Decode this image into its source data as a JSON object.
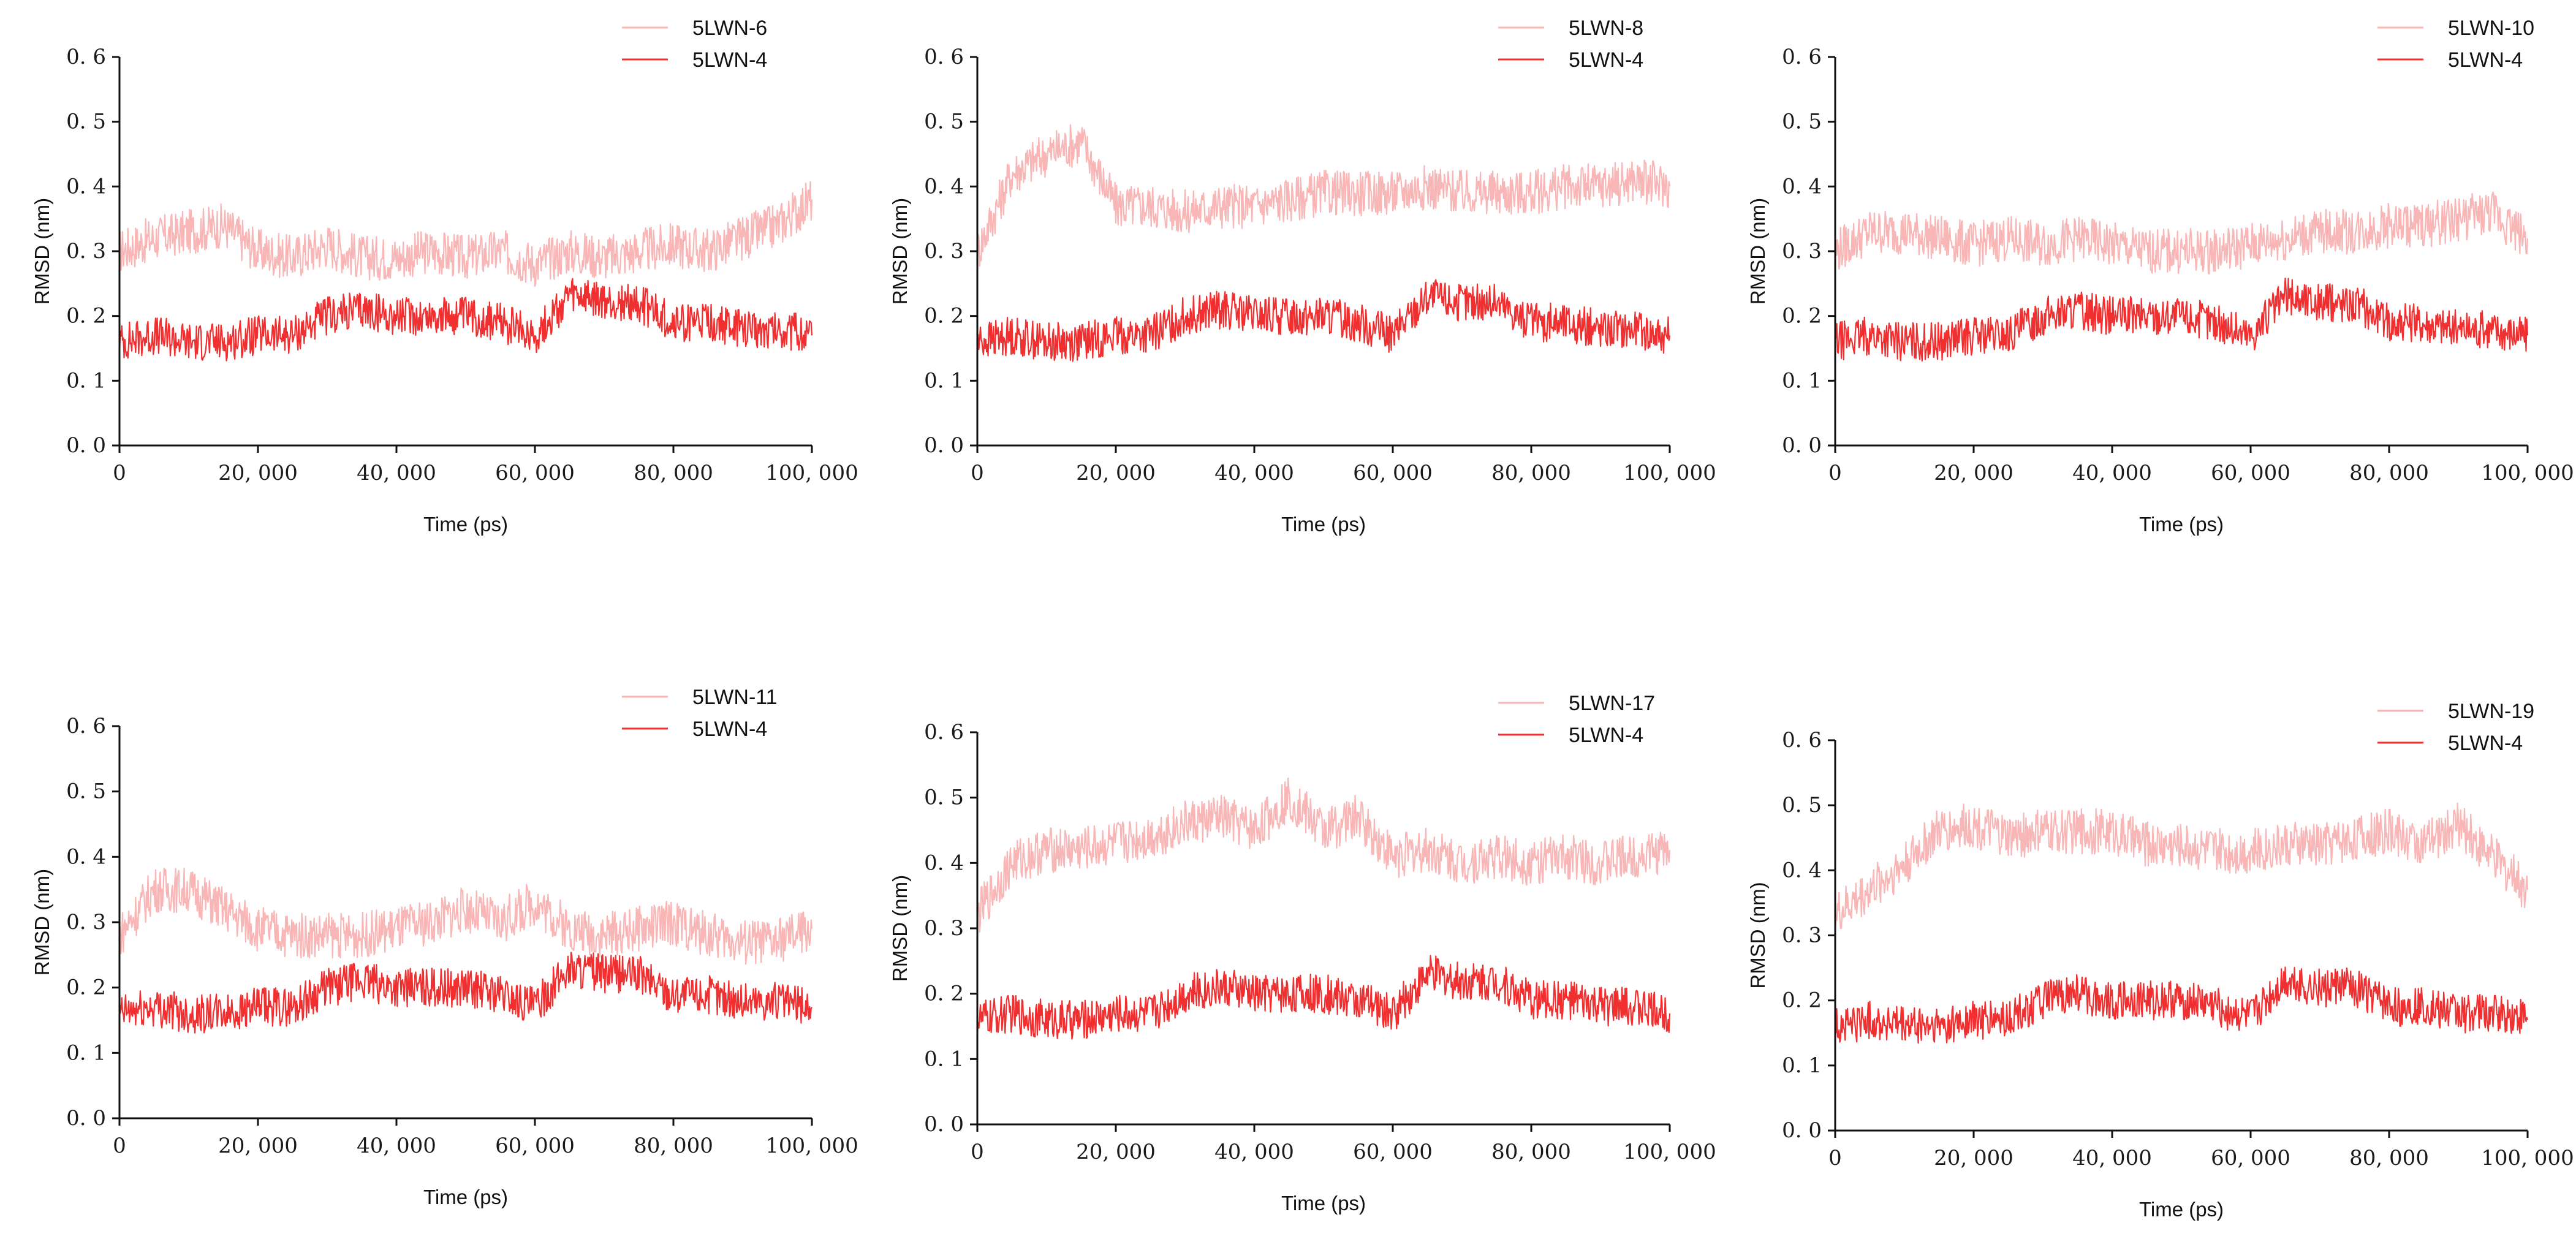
{
  "chart_data": [
    {
      "type": "line",
      "title": "",
      "xlabel": "Time (ps)",
      "ylabel": "RMSD (nm)",
      "xlim": [
        0,
        100000
      ],
      "ylim": [
        0.0,
        0.6
      ],
      "xticks": [
        "0",
        "20, 000",
        "40, 000",
        "60, 000",
        "80, 000",
        "100, 000"
      ],
      "yticks": [
        "0. 0",
        "0. 1",
        "0. 2",
        "0. 3",
        "0. 4",
        "0. 5",
        "0. 6"
      ],
      "legend_position": "top-right",
      "x": [
        0,
        5000,
        10000,
        15000,
        20000,
        25000,
        30000,
        35000,
        40000,
        45000,
        50000,
        55000,
        60000,
        65000,
        70000,
        75000,
        80000,
        85000,
        90000,
        95000,
        100000
      ],
      "series": [
        {
          "name": "5LWN-6",
          "color": "#f9b6b6",
          "values": [
            0.3,
            0.32,
            0.33,
            0.34,
            0.3,
            0.29,
            0.31,
            0.29,
            0.29,
            0.3,
            0.29,
            0.3,
            0.28,
            0.3,
            0.29,
            0.3,
            0.31,
            0.3,
            0.32,
            0.34,
            0.38
          ]
        },
        {
          "name": "5LWN-4",
          "color": "#f03030",
          "values": [
            0.16,
            0.17,
            0.16,
            0.16,
            0.17,
            0.17,
            0.2,
            0.21,
            0.2,
            0.2,
            0.2,
            0.19,
            0.17,
            0.23,
            0.22,
            0.22,
            0.19,
            0.19,
            0.18,
            0.18,
            0.17
          ]
        }
      ]
    },
    {
      "type": "line",
      "title": "",
      "xlabel": "Time (ps)",
      "ylabel": "RMSD (nm)",
      "xlim": [
        0,
        100000
      ],
      "ylim": [
        0.0,
        0.6
      ],
      "xticks": [
        "0",
        "20, 000",
        "40, 000",
        "60, 000",
        "80, 000",
        "100, 000"
      ],
      "yticks": [
        "0. 0",
        "0. 1",
        "0. 2",
        "0. 3",
        "0. 4",
        "0. 5",
        "0. 6"
      ],
      "legend_position": "top-right",
      "x": [
        0,
        5000,
        10000,
        15000,
        20000,
        25000,
        30000,
        35000,
        40000,
        45000,
        50000,
        55000,
        60000,
        65000,
        70000,
        75000,
        80000,
        85000,
        90000,
        95000,
        100000
      ],
      "series": [
        {
          "name": "5LWN-8",
          "color": "#f9b6b6",
          "values": [
            0.3,
            0.42,
            0.45,
            0.47,
            0.37,
            0.37,
            0.36,
            0.37,
            0.37,
            0.38,
            0.39,
            0.39,
            0.39,
            0.4,
            0.39,
            0.39,
            0.39,
            0.4,
            0.4,
            0.41,
            0.4
          ]
        },
        {
          "name": "5LWN-4",
          "color": "#f03030",
          "values": [
            0.16,
            0.17,
            0.16,
            0.16,
            0.17,
            0.17,
            0.2,
            0.21,
            0.2,
            0.2,
            0.2,
            0.19,
            0.17,
            0.23,
            0.22,
            0.22,
            0.19,
            0.19,
            0.18,
            0.18,
            0.17
          ]
        }
      ]
    },
    {
      "type": "line",
      "title": "",
      "xlabel": "Time (ps)",
      "ylabel": "RMSD (nm)",
      "xlim": [
        0,
        100000
      ],
      "ylim": [
        0.0,
        0.6
      ],
      "xticks": [
        "0",
        "20, 000",
        "40, 000",
        "60, 000",
        "80, 000",
        "100, 000"
      ],
      "yticks": [
        "0. 0",
        "0. 1",
        "0. 2",
        "0. 3",
        "0. 4",
        "0. 5",
        "0. 6"
      ],
      "legend_position": "top-right",
      "x": [
        0,
        5000,
        10000,
        15000,
        20000,
        25000,
        30000,
        35000,
        40000,
        45000,
        50000,
        55000,
        60000,
        65000,
        70000,
        75000,
        80000,
        85000,
        90000,
        95000,
        100000
      ],
      "series": [
        {
          "name": "5LWN-10",
          "color": "#f9b6b6",
          "values": [
            0.3,
            0.33,
            0.33,
            0.32,
            0.31,
            0.32,
            0.31,
            0.32,
            0.31,
            0.3,
            0.3,
            0.3,
            0.31,
            0.32,
            0.33,
            0.33,
            0.34,
            0.34,
            0.35,
            0.36,
            0.32
          ]
        },
        {
          "name": "5LWN-4",
          "color": "#f03030",
          "values": [
            0.16,
            0.17,
            0.16,
            0.16,
            0.17,
            0.17,
            0.2,
            0.21,
            0.2,
            0.2,
            0.2,
            0.19,
            0.17,
            0.23,
            0.22,
            0.22,
            0.19,
            0.19,
            0.18,
            0.18,
            0.17
          ]
        }
      ]
    },
    {
      "type": "line",
      "title": "",
      "xlabel": "Time (ps)",
      "ylabel": "RMSD (nm)",
      "xlim": [
        0,
        100000
      ],
      "ylim": [
        0.0,
        0.6
      ],
      "xticks": [
        "0",
        "20, 000",
        "40, 000",
        "60, 000",
        "80, 000",
        "100, 000"
      ],
      "yticks": [
        "0. 0",
        "0. 1",
        "0. 2",
        "0. 3",
        "0. 4",
        "0. 5",
        "0. 6"
      ],
      "legend_position": "top-right",
      "x": [
        0,
        5000,
        10000,
        15000,
        20000,
        25000,
        30000,
        35000,
        40000,
        45000,
        50000,
        55000,
        60000,
        65000,
        70000,
        75000,
        80000,
        85000,
        90000,
        95000,
        100000
      ],
      "series": [
        {
          "name": "5LWN-11",
          "color": "#f9b6b6",
          "values": [
            0.28,
            0.35,
            0.35,
            0.32,
            0.29,
            0.28,
            0.28,
            0.28,
            0.29,
            0.3,
            0.32,
            0.3,
            0.33,
            0.29,
            0.28,
            0.29,
            0.3,
            0.28,
            0.27,
            0.27,
            0.29
          ]
        },
        {
          "name": "5LWN-4",
          "color": "#f03030",
          "values": [
            0.16,
            0.17,
            0.16,
            0.16,
            0.17,
            0.17,
            0.2,
            0.21,
            0.2,
            0.2,
            0.2,
            0.19,
            0.17,
            0.23,
            0.22,
            0.22,
            0.19,
            0.19,
            0.18,
            0.18,
            0.17
          ]
        }
      ]
    },
    {
      "type": "line",
      "title": "",
      "xlabel": "Time (ps)",
      "ylabel": "RMSD (nm)",
      "xlim": [
        0,
        100000
      ],
      "ylim": [
        0.0,
        0.6
      ],
      "xticks": [
        "0",
        "20, 000",
        "40, 000",
        "60, 000",
        "80, 000",
        "100, 000"
      ],
      "yticks": [
        "0. 0",
        "0. 1",
        "0. 2",
        "0. 3",
        "0. 4",
        "0. 5",
        "0. 6"
      ],
      "legend_position": "top-right",
      "x": [
        0,
        5000,
        10000,
        15000,
        20000,
        25000,
        30000,
        35000,
        40000,
        45000,
        50000,
        55000,
        60000,
        65000,
        70000,
        75000,
        80000,
        85000,
        90000,
        95000,
        100000
      ],
      "series": [
        {
          "name": "5LWN-17",
          "color": "#f9b6b6",
          "values": [
            0.32,
            0.4,
            0.42,
            0.42,
            0.43,
            0.44,
            0.46,
            0.47,
            0.45,
            0.5,
            0.45,
            0.47,
            0.41,
            0.42,
            0.4,
            0.41,
            0.4,
            0.41,
            0.4,
            0.41,
            0.42
          ]
        },
        {
          "name": "5LWN-4",
          "color": "#f03030",
          "values": [
            0.16,
            0.17,
            0.16,
            0.16,
            0.17,
            0.17,
            0.2,
            0.21,
            0.2,
            0.2,
            0.2,
            0.19,
            0.17,
            0.23,
            0.22,
            0.22,
            0.19,
            0.19,
            0.18,
            0.18,
            0.17
          ]
        }
      ]
    },
    {
      "type": "line",
      "title": "",
      "xlabel": "Time (ps)",
      "ylabel": "RMSD (nm)",
      "xlim": [
        0,
        100000
      ],
      "ylim": [
        0.0,
        0.6
      ],
      "xticks": [
        "0",
        "20, 000",
        "40, 000",
        "60, 000",
        "80, 000",
        "100, 000"
      ],
      "yticks": [
        "0. 0",
        "0. 1",
        "0. 2",
        "0. 3",
        "0. 4",
        "0. 5",
        "0. 6"
      ],
      "legend_position": "top-right",
      "x": [
        0,
        5000,
        10000,
        15000,
        20000,
        25000,
        30000,
        35000,
        40000,
        45000,
        50000,
        55000,
        60000,
        65000,
        70000,
        75000,
        80000,
        85000,
        90000,
        95000,
        100000
      ],
      "series": [
        {
          "name": "5LWN-19",
          "color": "#f9b6b6",
          "values": [
            0.33,
            0.37,
            0.41,
            0.46,
            0.47,
            0.45,
            0.46,
            0.46,
            0.46,
            0.44,
            0.44,
            0.43,
            0.43,
            0.44,
            0.44,
            0.45,
            0.46,
            0.44,
            0.47,
            0.42,
            0.37
          ]
        },
        {
          "name": "5LWN-4",
          "color": "#f03030",
          "values": [
            0.16,
            0.17,
            0.16,
            0.16,
            0.17,
            0.17,
            0.2,
            0.21,
            0.2,
            0.2,
            0.2,
            0.19,
            0.17,
            0.23,
            0.22,
            0.22,
            0.19,
            0.19,
            0.18,
            0.18,
            0.17
          ]
        }
      ]
    }
  ]
}
